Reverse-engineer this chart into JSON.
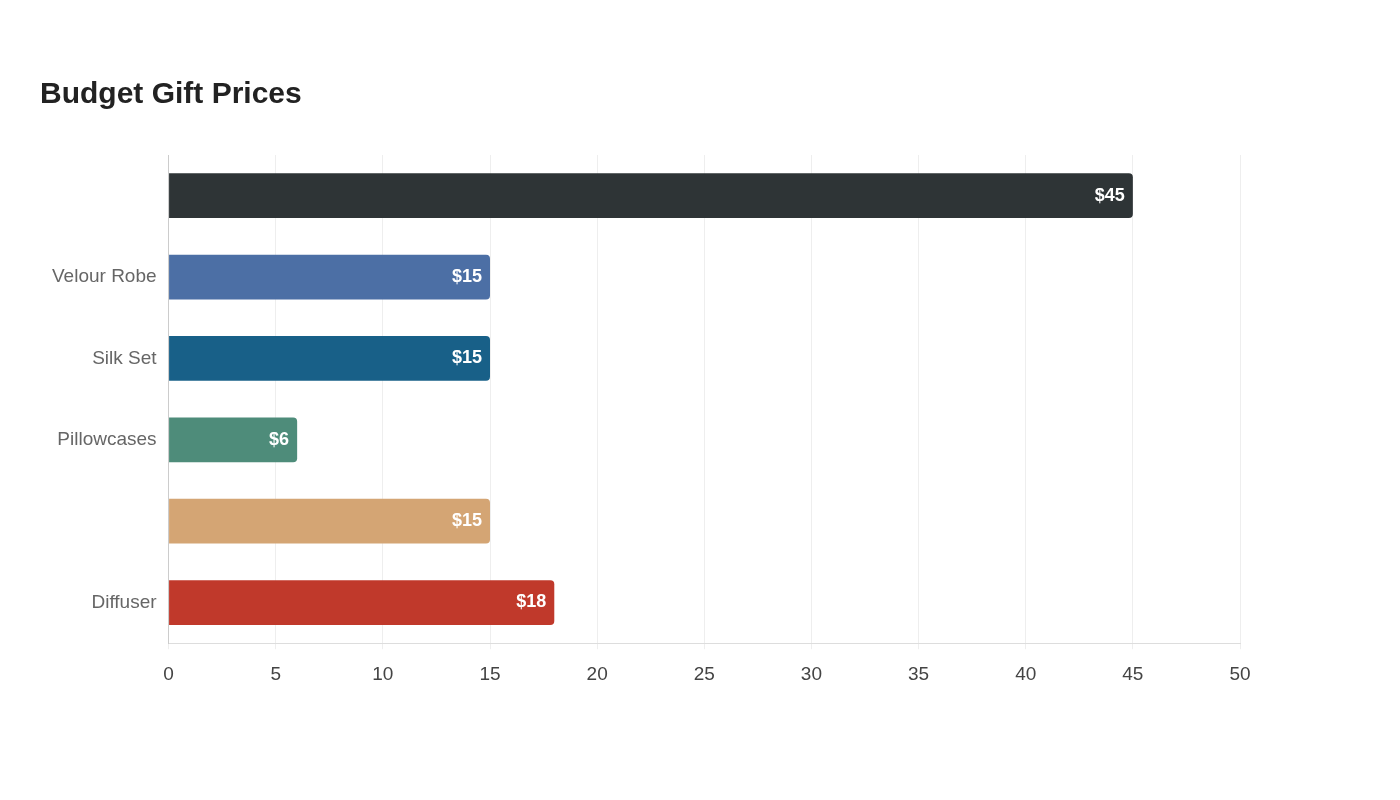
{
  "chart_data": {
    "type": "bar",
    "title": "Budget Gift Prices",
    "orientation": "horizontal",
    "categories": [
      null,
      "Velour Robe",
      "Silk Set",
      "Pillowcases",
      null,
      "Diffuser"
    ],
    "values": [
      45,
      15,
      15,
      6,
      15,
      18
    ],
    "colors": [
      "#2e3436",
      "#4c6fa5",
      "#186088",
      "#4e8c7a",
      "#d4a574",
      "#c0392b"
    ],
    "value_labels": [
      "$45",
      "$15",
      "$15",
      "$6",
      "$15",
      "$18"
    ],
    "xlim": [
      0,
      50
    ],
    "xticks": [
      0,
      5,
      10,
      15,
      20,
      25,
      30,
      35,
      40,
      45,
      50
    ],
    "grid": "x",
    "legend": false
  }
}
